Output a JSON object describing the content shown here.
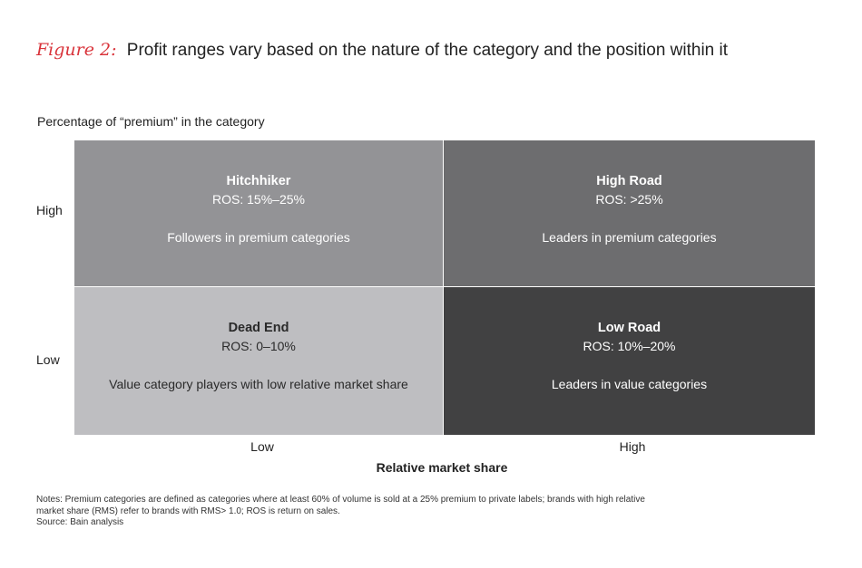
{
  "title": {
    "figure_label": "Figure 2:",
    "text": "Profit ranges vary based on the nature of the category and the position within it"
  },
  "y_axis": {
    "title": "Percentage of “premium” in the category",
    "high": "High",
    "low": "Low"
  },
  "x_axis": {
    "title": "Relative market share",
    "low": "Low",
    "high": "High"
  },
  "quadrants": {
    "top_left": {
      "name": "Hitchhiker",
      "ros": "ROS: 15%–25%",
      "desc": "Followers in premium categories"
    },
    "top_right": {
      "name": "High Road",
      "ros": "ROS: >25%",
      "desc": "Leaders in premium categories"
    },
    "bottom_left": {
      "name": "Dead End",
      "ros": "ROS: 0–10%",
      "desc": "Value category players with low relative market share"
    },
    "bottom_right": {
      "name": "Low Road",
      "ros": "ROS: 10%–20%",
      "desc": "Leaders in value categories"
    }
  },
  "notes": {
    "line1": "Notes: Premium categories are defined as categories where at least 60% of volume is sold at a 25% premium to private labels; brands with high relative",
    "line2": "market share (RMS) refer to brands with RMS> 1.0; ROS is return on sales.",
    "source": "Source: Bain analysis"
  },
  "colors": {
    "accent": "#d9343b",
    "top_left": "#939396",
    "top_right": "#6d6d6f",
    "bottom_left": "#bebec1",
    "bottom_right": "#414142"
  }
}
